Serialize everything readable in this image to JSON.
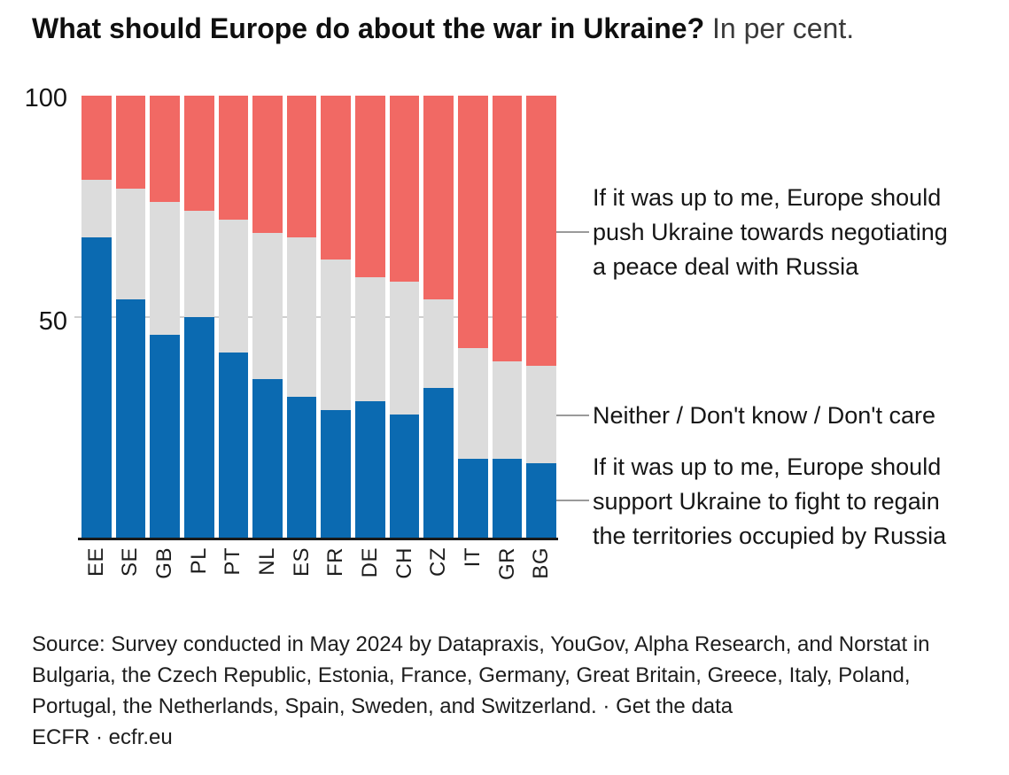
{
  "chart_data": {
    "type": "bar",
    "stacked": true,
    "title": "What should Europe do about the war in Ukraine?",
    "subtitle": "In per cent.",
    "categories": [
      "EE",
      "SE",
      "GB",
      "PL",
      "PT",
      "NL",
      "ES",
      "FR",
      "DE",
      "CH",
      "CZ",
      "IT",
      "GR",
      "BG"
    ],
    "series": [
      {
        "key": "fight",
        "name": "If it was up to me, Europe should support Ukraine to fight to regain the territories occupied by Russia",
        "color": "#0b6ab1",
        "values": [
          68,
          54,
          46,
          50,
          42,
          36,
          32,
          29,
          31,
          28,
          34,
          18,
          18,
          17
        ]
      },
      {
        "key": "neither",
        "name": "Neither / Don't know / Don't care",
        "color": "#dcdcdc",
        "values": [
          13,
          25,
          30,
          24,
          30,
          33,
          36,
          34,
          28,
          30,
          20,
          25,
          22,
          22
        ]
      },
      {
        "key": "negotiate",
        "name": "If it was up to me, Europe should push Ukraine towards negotiating a peace deal with Russia",
        "color": "#f16964",
        "values": [
          19,
          21,
          24,
          26,
          28,
          31,
          32,
          37,
          41,
          42,
          46,
          57,
          60,
          61
        ]
      }
    ],
    "ylim": [
      0,
      100
    ],
    "yticks": [
      100,
      50
    ],
    "ytick_labels": [
      "100",
      "50"
    ],
    "grid": "single horizontal gridline at 50, behind bars",
    "legend_position": "right-side text annotations with connector lines"
  },
  "annotations": [
    {
      "id": "negotiate",
      "text": "If it was up to me, Europe should\npush Ukraine towards negotiating\na peace deal with Russia"
    },
    {
      "id": "neither",
      "text": "Neither / Don't know / Don't care"
    },
    {
      "id": "fight",
      "text": "If it was up to me, Europe should\nsupport Ukraine to fight to regain\nthe territories occupied by Russia"
    }
  ],
  "source": {
    "text": "Source: Survey conducted in May 2024 by Datapraxis, YouGov, Alpha Research, and Norstat in\nBulgaria, the Czech Republic, Estonia, France, Germany, Great Britain, Greece, Italy, Poland,\nPortugal, the Netherlands, Spain, Sweden, and Switzerland. · ",
    "get_data_label": "Get the data",
    "byline_org": "ECFR ·",
    "byline_link": "ecfr.eu"
  },
  "colors": {
    "support_fight_blue": "#0b6ab1",
    "neither_gray": "#dcdcdc",
    "negotiate_red": "#f16964",
    "gridline": "#cfcfcf",
    "baseline": "#1a1a1a",
    "connector": "#9a9a9a"
  }
}
